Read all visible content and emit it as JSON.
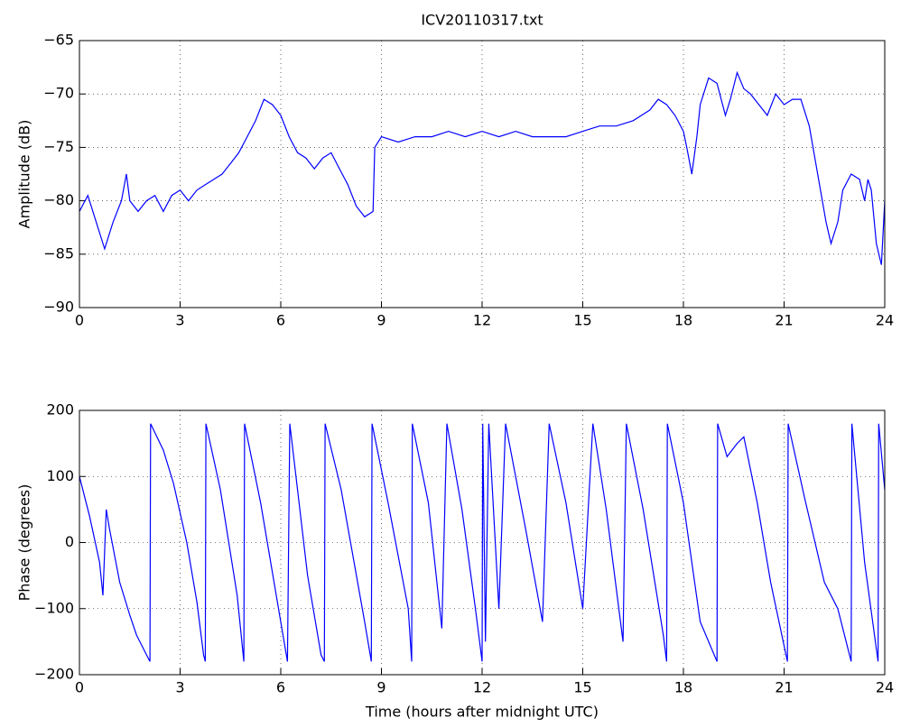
{
  "chart_data": [
    {
      "type": "line",
      "title": "ICV20110317.txt",
      "ylabel": "Amplitude (dB)",
      "grid": true,
      "xlim": [
        0,
        24
      ],
      "xticks": [
        0,
        3,
        6,
        9,
        12,
        15,
        18,
        21,
        24
      ],
      "ylim": [
        -90,
        -65
      ],
      "yticks": [
        {
          "value": -90,
          "label": "−90"
        },
        {
          "value": -85,
          "label": "−85"
        },
        {
          "value": -80,
          "label": "−80"
        },
        {
          "value": -75,
          "label": "−75"
        },
        {
          "value": -70,
          "label": "−70"
        },
        {
          "value": -65,
          "label": "−65"
        }
      ],
      "series": [
        {
          "color": "#0000ff",
          "x": [
            0,
            0.25,
            0.5,
            0.75,
            1.0,
            1.25,
            1.4,
            1.5,
            1.75,
            2,
            2.25,
            2.5,
            2.75,
            3,
            3.25,
            3.5,
            3.75,
            4,
            4.25,
            4.5,
            4.75,
            5,
            5.25,
            5.5,
            5.75,
            6,
            6.25,
            6.5,
            6.75,
            7,
            7.25,
            7.5,
            7.75,
            8,
            8.25,
            8.5,
            8.75,
            8.8,
            9,
            9.5,
            10,
            10.5,
            11,
            11.5,
            12,
            12.5,
            13,
            13.5,
            14,
            14.5,
            15,
            15.5,
            16,
            16.5,
            17,
            17.25,
            17.5,
            17.75,
            18,
            18.1,
            18.25,
            18.4,
            18.5,
            18.75,
            19,
            19.25,
            19.4,
            19.6,
            19.8,
            20,
            20.25,
            20.5,
            20.75,
            21,
            21.25,
            21.5,
            21.75,
            22,
            22.25,
            22.4,
            22.6,
            22.75,
            23,
            23.25,
            23.4,
            23.5,
            23.6,
            23.75,
            23.9,
            24
          ],
          "values": [
            -81,
            -79.5,
            -82,
            -84.5,
            -82,
            -80,
            -77.5,
            -80,
            -81,
            -80,
            -79.5,
            -81,
            -79.5,
            -79,
            -80,
            -79,
            -78.5,
            -78,
            -77.5,
            -76.5,
            -75.5,
            -74,
            -72.5,
            -70.5,
            -71,
            -72,
            -74,
            -75.5,
            -76,
            -77,
            -76,
            -75.5,
            -77,
            -78.5,
            -80.5,
            -81.5,
            -81,
            -75,
            -74,
            -74.5,
            -74,
            -74,
            -73.5,
            -74,
            -73.5,
            -74,
            -73.5,
            -74,
            -74,
            -74,
            -73.5,
            -73,
            -73,
            -72.5,
            -71.5,
            -70.5,
            -71,
            -72,
            -73.5,
            -75,
            -77.5,
            -74,
            -71,
            -68.5,
            -69,
            -72,
            -70.5,
            -68,
            -69.5,
            -70,
            -71,
            -72,
            -70,
            -71,
            -70.5,
            -70.5,
            -73,
            -77.5,
            -82,
            -84,
            -82,
            -79,
            -77.5,
            -78,
            -80,
            -78,
            -79,
            -84,
            -86,
            -80
          ]
        }
      ]
    },
    {
      "type": "line",
      "xlabel": "Time (hours after midnight UTC)",
      "ylabel": "Phase (degrees)",
      "grid": true,
      "xlim": [
        0,
        24
      ],
      "xticks": [
        0,
        3,
        6,
        9,
        12,
        15,
        18,
        21,
        24
      ],
      "ylim": [
        -200,
        200
      ],
      "yticks": [
        {
          "value": -200,
          "label": "−200"
        },
        {
          "value": -100,
          "label": "−100"
        },
        0,
        100,
        200
      ],
      "series": [
        {
          "color": "#0000ff",
          "x": [
            0,
            0.3,
            0.6,
            0.7,
            0.8,
            0.9,
            1.2,
            1.5,
            1.7,
            2.0,
            2.1,
            2.12,
            2.5,
            2.8,
            3.2,
            3.5,
            3.7,
            3.75,
            3.77,
            4.2,
            4.7,
            4.9,
            4.92,
            5.4,
            6.2,
            6.27,
            6.8,
            7.2,
            7.3,
            7.32,
            7.8,
            8.5,
            8.7,
            8.72,
            9.2,
            9.8,
            9.9,
            9.92,
            10.4,
            10.8,
            10.95,
            11.4,
            11.8,
            12.0,
            12.02,
            12.1,
            12.2,
            12.5,
            12.7,
            13.3,
            13.8,
            14.0,
            14.5,
            15,
            15.3,
            15.7,
            16.2,
            16.3,
            16.8,
            17.4,
            17.5,
            17.52,
            18,
            18.5,
            19,
            19.02,
            19.3,
            19.6,
            19.8,
            20.2,
            20.6,
            21.1,
            21.12,
            21.6,
            22.2,
            22.6,
            22.9,
            23,
            23.02,
            23.4,
            23.8,
            23.82,
            24
          ],
          "values": [
            100,
            40,
            -30,
            -80,
            50,
            20,
            -60,
            -110,
            -140,
            -170,
            -180,
            180,
            140,
            90,
            0,
            -90,
            -170,
            -180,
            180,
            80,
            -80,
            -180,
            180,
            60,
            -180,
            180,
            -50,
            -170,
            -180,
            180,
            80,
            -120,
            -180,
            180,
            60,
            -100,
            -180,
            180,
            60,
            -130,
            180,
            50,
            -100,
            -180,
            180,
            -150,
            180,
            -100,
            180,
            20,
            -120,
            180,
            60,
            -100,
            180,
            50,
            -150,
            180,
            50,
            -140,
            -180,
            180,
            60,
            -120,
            -180,
            180,
            130,
            150,
            160,
            60,
            -60,
            -180,
            180,
            70,
            -60,
            -100,
            -160,
            -180,
            180,
            -30,
            -180,
            180,
            80
          ]
        }
      ]
    }
  ]
}
